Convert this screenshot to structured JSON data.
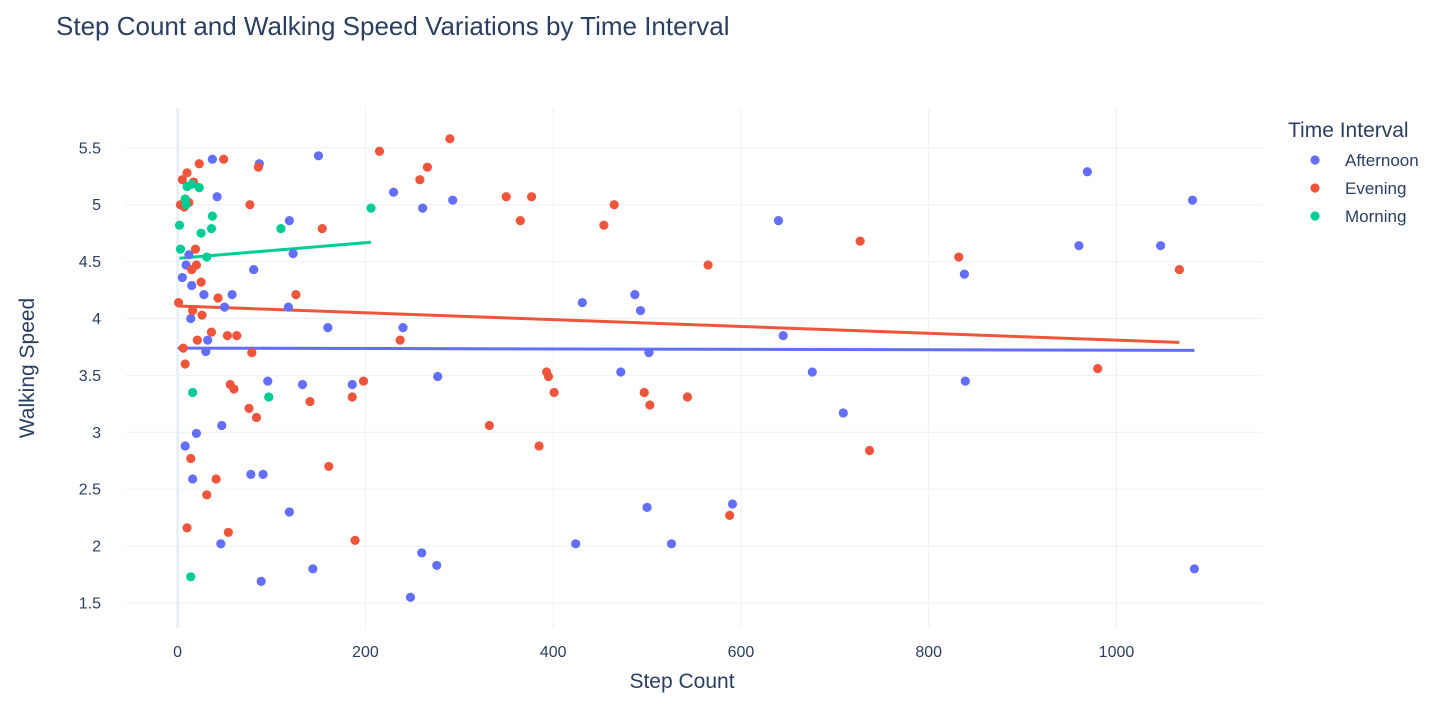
{
  "chart_data": {
    "type": "scatter",
    "title": "Step Count and Walking Speed Variations by Time Interval",
    "xlabel": "Step Count",
    "ylabel": "Walking Speed",
    "xlim": [
      -55,
      1155
    ],
    "ylim": [
      1.28,
      5.85
    ],
    "x_ticks": [
      0,
      200,
      400,
      600,
      800,
      1000
    ],
    "x_tick_labels": [
      "0",
      "200",
      "400",
      "600",
      "800",
      "1000"
    ],
    "y_ticks": [
      1.5,
      2,
      2.5,
      3,
      3.5,
      4,
      4.5,
      5,
      5.5
    ],
    "y_tick_labels": [
      "1.5",
      "2",
      "2.5",
      "3",
      "3.5",
      "4",
      "4.5",
      "5",
      "5.5"
    ],
    "grid": true,
    "legend": {
      "title": "Time Interval",
      "position": "right"
    },
    "series": [
      {
        "name": "Afternoon",
        "color": "#636efa",
        "trendline": [
          [
            0,
            3.74
          ],
          [
            1083,
            3.72
          ]
        ],
        "points": [
          [
            5,
            4.36
          ],
          [
            8,
            2.88
          ],
          [
            9,
            4.47
          ],
          [
            12,
            4.56
          ],
          [
            14,
            4.0
          ],
          [
            15,
            4.29
          ],
          [
            16,
            2.59
          ],
          [
            20,
            2.99
          ],
          [
            28,
            4.21
          ],
          [
            30,
            3.71
          ],
          [
            32,
            3.81
          ],
          [
            37,
            5.4
          ],
          [
            42,
            5.07
          ],
          [
            46,
            2.02
          ],
          [
            47,
            3.06
          ],
          [
            50,
            4.1
          ],
          [
            58,
            4.21
          ],
          [
            78,
            2.63
          ],
          [
            81,
            4.43
          ],
          [
            87,
            5.36
          ],
          [
            89,
            1.69
          ],
          [
            91,
            2.63
          ],
          [
            96,
            3.45
          ],
          [
            118,
            4.1
          ],
          [
            119,
            2.3
          ],
          [
            119,
            4.86
          ],
          [
            123,
            4.57
          ],
          [
            133,
            3.42
          ],
          [
            144,
            1.8
          ],
          [
            150,
            5.43
          ],
          [
            160,
            3.92
          ],
          [
            186,
            3.42
          ],
          [
            230,
            5.11
          ],
          [
            240,
            3.92
          ],
          [
            248,
            1.55
          ],
          [
            260,
            1.94
          ],
          [
            261,
            4.97
          ],
          [
            276,
            1.83
          ],
          [
            277,
            3.49
          ],
          [
            293,
            5.04
          ],
          [
            424,
            2.02
          ],
          [
            431,
            4.14
          ],
          [
            472,
            3.53
          ],
          [
            487,
            4.21
          ],
          [
            493,
            4.07
          ],
          [
            500,
            2.34
          ],
          [
            502,
            3.7
          ],
          [
            526,
            2.02
          ],
          [
            591,
            2.37
          ],
          [
            640,
            4.86
          ],
          [
            645,
            3.85
          ],
          [
            676,
            3.53
          ],
          [
            709,
            3.17
          ],
          [
            838,
            4.39
          ],
          [
            839,
            3.45
          ],
          [
            960,
            4.64
          ],
          [
            969,
            5.29
          ],
          [
            1047,
            4.64
          ],
          [
            1081,
            5.04
          ],
          [
            1083,
            1.8
          ]
        ]
      },
      {
        "name": "Evening",
        "color": "#ef553b",
        "trendline": [
          [
            0,
            4.11
          ],
          [
            1067,
            3.79
          ]
        ],
        "points": [
          [
            1,
            4.14
          ],
          [
            3,
            5.0
          ],
          [
            5,
            5.22
          ],
          [
            6,
            3.74
          ],
          [
            7,
            4.98
          ],
          [
            8,
            3.6
          ],
          [
            10,
            2.16
          ],
          [
            10,
            5.28
          ],
          [
            12,
            5.02
          ],
          [
            14,
            2.77
          ],
          [
            15,
            4.43
          ],
          [
            16,
            4.07
          ],
          [
            17,
            5.2
          ],
          [
            19,
            4.61
          ],
          [
            20,
            4.47
          ],
          [
            21,
            3.81
          ],
          [
            23,
            5.36
          ],
          [
            25,
            4.32
          ],
          [
            26,
            4.03
          ],
          [
            31,
            2.45
          ],
          [
            36,
            3.88
          ],
          [
            41,
            2.59
          ],
          [
            43,
            4.18
          ],
          [
            49,
            5.4
          ],
          [
            53,
            3.85
          ],
          [
            54,
            2.12
          ],
          [
            56,
            3.42
          ],
          [
            60,
            3.38
          ],
          [
            63,
            3.85
          ],
          [
            76,
            3.21
          ],
          [
            77,
            5.0
          ],
          [
            79,
            3.7
          ],
          [
            84,
            3.13
          ],
          [
            86,
            5.33
          ],
          [
            126,
            4.21
          ],
          [
            141,
            3.27
          ],
          [
            154,
            4.79
          ],
          [
            161,
            2.7
          ],
          [
            186,
            3.31
          ],
          [
            189,
            2.05
          ],
          [
            198,
            3.45
          ],
          [
            215,
            5.47
          ],
          [
            237,
            3.81
          ],
          [
            258,
            5.22
          ],
          [
            266,
            5.33
          ],
          [
            290,
            5.58
          ],
          [
            332,
            3.06
          ],
          [
            350,
            5.07
          ],
          [
            365,
            4.86
          ],
          [
            377,
            5.07
          ],
          [
            385,
            2.88
          ],
          [
            393,
            3.53
          ],
          [
            395,
            3.49
          ],
          [
            401,
            3.35
          ],
          [
            454,
            4.82
          ],
          [
            465,
            5.0
          ],
          [
            497,
            3.35
          ],
          [
            503,
            3.24
          ],
          [
            543,
            3.31
          ],
          [
            565,
            4.47
          ],
          [
            588,
            2.27
          ],
          [
            727,
            4.68
          ],
          [
            737,
            2.84
          ],
          [
            832,
            4.54
          ],
          [
            980,
            3.56
          ],
          [
            1067,
            4.43
          ]
        ]
      },
      {
        "name": "Morning",
        "color": "#00cc96",
        "trendline": [
          [
            2,
            4.53
          ],
          [
            206,
            4.67
          ]
        ],
        "points": [
          [
            2,
            4.82
          ],
          [
            3,
            4.61
          ],
          [
            8,
            5.05
          ],
          [
            9,
            5.0
          ],
          [
            10,
            5.16
          ],
          [
            14,
            1.73
          ],
          [
            15,
            5.18
          ],
          [
            16,
            3.35
          ],
          [
            23,
            5.15
          ],
          [
            25,
            4.75
          ],
          [
            31,
            4.54
          ],
          [
            36,
            4.79
          ],
          [
            37,
            4.9
          ],
          [
            97,
            3.31
          ],
          [
            110,
            4.79
          ],
          [
            206,
            4.97
          ]
        ]
      }
    ]
  }
}
